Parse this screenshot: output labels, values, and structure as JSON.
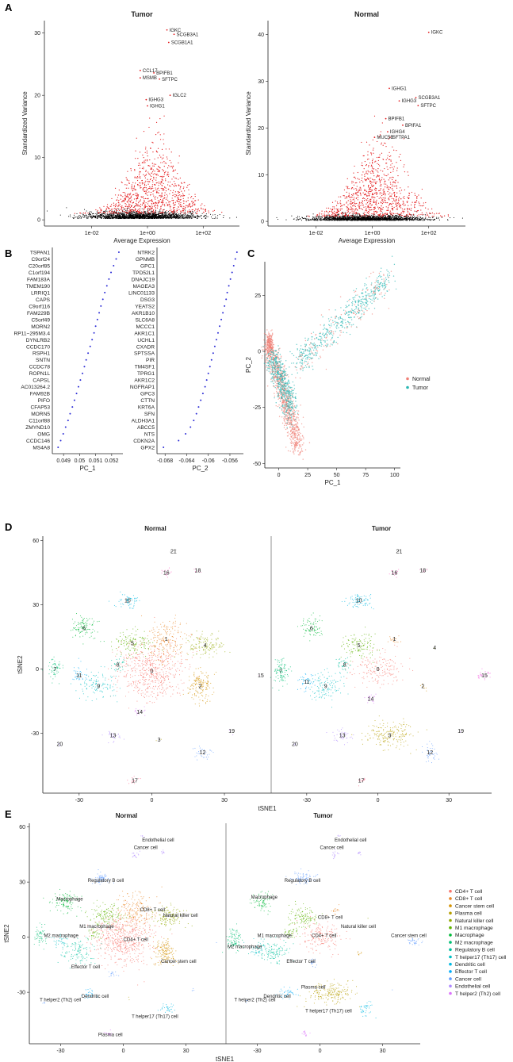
{
  "colors": {
    "highlight": "#e41a1c",
    "bg": "#d9d9d9",
    "normal": "#f08178",
    "tumor": "#2ab7b3",
    "axis": "#222222",
    "pc": "#2b2bd6",
    "clusters": [
      "#f8766d",
      "#e88526",
      "#d39200",
      "#b79f00",
      "#93aa00",
      "#5eb300",
      "#00ba38",
      "#00bf74",
      "#00c19f",
      "#00bfc4",
      "#00b9e3",
      "#00adfa",
      "#619cff",
      "#ae87ff",
      "#db72fb",
      "#f564e3",
      "#ff61c3",
      "#ff6c91",
      "#e06fb0",
      "#c77cff",
      "#a58aff",
      "#8f8f8f"
    ]
  },
  "panels": {
    "A": "A",
    "B": "B",
    "C": "C",
    "D": "D",
    "E": "E"
  },
  "chart_data": [
    {
      "id": "A1",
      "type": "scatter",
      "title": "Tumor",
      "xlabel": "Average Expression",
      "ylabel": "Standardized Variance",
      "xscale": "log10",
      "xticks": [
        "1e-02",
        "1e+00",
        "1e+02"
      ],
      "xlim": [
        0.0002,
        2000
      ],
      "ylim": [
        -1,
        32
      ],
      "yticks": [
        0,
        10,
        20,
        30
      ],
      "labels": [
        {
          "text": "IGKC",
          "x": 5,
          "y": 30.5
        },
        {
          "text": "SCGB3A1",
          "x": 9,
          "y": 29.8
        },
        {
          "text": "SCGB1A1",
          "x": 5.8,
          "y": 28.5
        },
        {
          "text": "CCL17",
          "x": 0.55,
          "y": 24
        },
        {
          "text": "BPIFB1",
          "x": 1.7,
          "y": 23.6
        },
        {
          "text": "MSMB",
          "x": 0.55,
          "y": 22.8
        },
        {
          "text": "SFTPC",
          "x": 2.7,
          "y": 22.6
        },
        {
          "text": "IGLC2",
          "x": 6.5,
          "y": 20
        },
        {
          "text": "IGHG3",
          "x": 0.9,
          "y": 19.3
        },
        {
          "text": "IGHG1",
          "x": 1,
          "y": 18.3
        }
      ]
    },
    {
      "id": "A2",
      "type": "scatter",
      "title": "Normal",
      "xlabel": "Average Expression",
      "ylabel": "Standardized Variance",
      "xscale": "log10",
      "xticks": [
        "1e-02",
        "1e+00",
        "1e+02"
      ],
      "xlim": [
        0.0002,
        2000
      ],
      "ylim": [
        -1,
        43
      ],
      "yticks": [
        0,
        10,
        20,
        30,
        40
      ],
      "labels": [
        {
          "text": "IGKC",
          "x": 100,
          "y": 40.5
        },
        {
          "text": "IGHG1",
          "x": 4,
          "y": 28.5
        },
        {
          "text": "SCGB3A1",
          "x": 35,
          "y": 26.5
        },
        {
          "text": "IGHG3",
          "x": 9,
          "y": 25.8
        },
        {
          "text": "SFTPC",
          "x": 42,
          "y": 24.8
        },
        {
          "text": "BPIFB1",
          "x": 3,
          "y": 22
        },
        {
          "text": "BPIFA1",
          "x": 12,
          "y": 20.6
        },
        {
          "text": "IGHG4",
          "x": 3.5,
          "y": 19.2
        },
        {
          "text": "MUC5B",
          "x": 1.2,
          "y": 18
        },
        {
          "text": "SFTPA1",
          "x": 4.2,
          "y": 18
        }
      ]
    },
    {
      "id": "B1",
      "type": "scatter",
      "xlabel": "PC_1",
      "xlim": [
        0.0483,
        0.0527
      ],
      "xticks": [
        0.049,
        0.05,
        0.051,
        0.052
      ],
      "genes": [
        "TSPAN1",
        "C9orf24",
        "C20orf85",
        "C1orf194",
        "FAM183A",
        "TMEM190",
        "LRRIQ1",
        "CAPS",
        "C9orf116",
        "FAM229B",
        "C5orf49",
        "MORN2",
        "RP11−295M3.4",
        "DYNLRB2",
        "CCDC170",
        "RSPH1",
        "SNTN",
        "CCDC78",
        "ROPN1L",
        "CAPSL",
        "AC013264.2",
        "FAM92B",
        "PIFO",
        "CFAP53",
        "MORN5",
        "C11orf88",
        "ZMYND10",
        "OMG",
        "CCDC146",
        "MS4A8"
      ],
      "values": [
        0.05245,
        0.05228,
        0.05212,
        0.05196,
        0.05183,
        0.0517,
        0.05157,
        0.05145,
        0.05133,
        0.05122,
        0.05111,
        0.051,
        0.0509,
        0.05078,
        0.05066,
        0.05053,
        0.05041,
        0.0503,
        0.05018,
        0.05005,
        0.04993,
        0.04981,
        0.04968,
        0.04955,
        0.04941,
        0.04928,
        0.04913,
        0.04898,
        0.04882,
        0.04866
      ]
    },
    {
      "id": "B2",
      "type": "scatter",
      "xlabel": "PC_2",
      "xlim": [
        -0.0695,
        -0.0535
      ],
      "xticks": [
        -0.068,
        -0.064,
        -0.06,
        -0.056
      ],
      "genes": [
        "NTRK2",
        "GPNMB",
        "GPC1",
        "TPD52L1",
        "DNAJC19",
        "MAGEA3",
        "LINC01133",
        "DSG3",
        "YEATS2",
        "AKR1B10",
        "SLC6A8",
        "MCCC1",
        "AKR1C1",
        "UCHL1",
        "CXADR",
        "SPTSSA",
        "PIR",
        "TM4SF1",
        "TPRG1",
        "AKR1C2",
        "NGFRAP1",
        "GPC3",
        "CTTN",
        "KRT6A",
        "SFN",
        "ALDH3A1",
        "ABCC5",
        "NTS",
        "CDKN2A",
        "GPX2"
      ],
      "values": [
        -0.0547,
        -0.055,
        -0.0553,
        -0.0556,
        -0.0559,
        -0.0562,
        -0.0565,
        -0.0567,
        -0.057,
        -0.0573,
        -0.0576,
        -0.0579,
        -0.0582,
        -0.0585,
        -0.0588,
        -0.0591,
        -0.0594,
        -0.0597,
        -0.06,
        -0.0603,
        -0.0606,
        -0.061,
        -0.0614,
        -0.0618,
        -0.0622,
        -0.0627,
        -0.0633,
        -0.0642,
        -0.0655,
        -0.0683
      ]
    },
    {
      "id": "C",
      "type": "scatter",
      "xlabel": "PC_1",
      "ylabel": "PC_2",
      "xlim": [
        -12,
        105
      ],
      "ylim": [
        -52,
        40
      ],
      "xticks": [
        0,
        25,
        50,
        75,
        100
      ],
      "yticks": [
        -50,
        -25,
        0,
        25
      ],
      "legend": {
        "placement": "right",
        "entries": [
          "Normal",
          "Tumor"
        ]
      }
    },
    {
      "id": "D",
      "type": "scatter",
      "xlabel": "tSNE1",
      "ylabel": "tSNE2",
      "xlim": [
        -45,
        48
      ],
      "ylim": [
        -58,
        62
      ],
      "xticks": [
        -30,
        0,
        30
      ],
      "yticks": [
        -30,
        0,
        30,
        60
      ],
      "facets": [
        "Normal",
        "Tumor"
      ],
      "clusters": [
        {
          "id": "0",
          "n": [
            [
              0,
              -1,
              13,
              12,
              1500
            ]
          ],
          "t": [
            [
              0,
              0,
              10,
              7,
              450
            ]
          ]
        },
        {
          "id": "1",
          "n": [
            [
              6,
              14,
              8,
              9,
              500
            ]
          ],
          "t": [
            [
              7,
              14,
              2.5,
              2.5,
              45
            ]
          ]
        },
        {
          "id": "2",
          "n": [
            [
              20,
              -8,
              5,
              7,
              400
            ]
          ],
          "t": [
            [
              19,
              -8,
              1.5,
              2.5,
              20
            ]
          ]
        },
        {
          "id": "3",
          "n": [
            [
              3,
              -33,
              2,
              2,
              5
            ]
          ],
          "t": [
            [
              5,
              -31,
              9,
              6,
              500
            ]
          ]
        },
        {
          "id": "4",
          "n": [
            [
              22,
              11,
              7,
              5,
              350
            ]
          ],
          "t": [
            [
              24,
              10,
              1,
              1,
              3
            ]
          ]
        },
        {
          "id": "5",
          "n": [
            [
              -8,
              12,
              7,
              5,
              350
            ]
          ],
          "t": [
            [
              -8,
              11,
              6,
              5,
              320
            ]
          ]
        },
        {
          "id": "6",
          "n": [
            [
              -28,
              19,
              6,
              5,
              280
            ]
          ],
          "t": [
            [
              -28,
              19,
              5,
              5,
              200
            ]
          ]
        },
        {
          "id": "7",
          "n": [
            [
              -40,
              0,
              3,
              5,
              150
            ]
          ],
          "t": [
            [
              -41,
              -1,
              3,
              6,
              250
            ]
          ]
        },
        {
          "id": "8",
          "n": [
            [
              -14,
              2,
              3,
              3,
              80
            ]
          ],
          "t": [
            [
              -14,
              2,
              3,
              3,
              100
            ]
          ]
        },
        {
          "id": "9",
          "n": [
            [
              -22,
              -8,
              7,
              6,
              300
            ]
          ],
          "t": [
            [
              -22,
              -8,
              7,
              6,
              320
            ]
          ]
        },
        {
          "id": "10",
          "n": [
            [
              -10,
              32,
              4,
              3,
              150
            ]
          ],
          "t": [
            [
              -8,
              32,
              5,
              3,
              200
            ]
          ]
        },
        {
          "id": "11",
          "n": [
            [
              -30,
              -3,
              3,
              4,
              90
            ]
          ],
          "t": [
            [
              -30,
              -6,
              3,
              4,
              110
            ]
          ]
        },
        {
          "id": "12",
          "n": [
            [
              21,
              -39,
              3,
              3,
              80
            ]
          ],
          "t": [
            [
              22,
              -39,
              3,
              4,
              100
            ]
          ]
        },
        {
          "id": "13",
          "n": [
            [
              -16,
              -31,
              3,
              3,
              70
            ]
          ],
          "t": [
            [
              -15,
              -31,
              4,
              3,
              100
            ]
          ]
        },
        {
          "id": "14",
          "n": [
            [
              -5,
              -20,
              2,
              2,
              40
            ]
          ],
          "t": [
            [
              -3,
              -14,
              2,
              2,
              50
            ]
          ]
        },
        {
          "id": "15",
          "n": [
            [
              45,
              -3,
              1,
              1,
              3
            ]
          ],
          "t": [
            [
              45,
              -3,
              3,
              2,
              80
            ]
          ]
        },
        {
          "id": "16",
          "n": [
            [
              6,
              45,
              2,
              2,
              40
            ]
          ],
          "t": [
            [
              7,
              45,
              2,
              2,
              40
            ]
          ]
        },
        {
          "id": "17",
          "n": [
            [
              -7,
              -52,
              2,
              1.5,
              40
            ]
          ],
          "t": [
            [
              -7,
              -52,
              2,
              1.5,
              40
            ]
          ]
        },
        {
          "id": "18",
          "n": [
            [
              19,
              46,
              1.5,
              1,
              20
            ]
          ],
          "t": [
            [
              19,
              46,
              1.5,
              1,
              20
            ]
          ]
        },
        {
          "id": "19",
          "n": [
            [
              33,
              -29,
              1,
              1,
              10
            ]
          ],
          "t": [
            [
              35,
              -29,
              0.5,
              0.5,
              3
            ]
          ]
        },
        {
          "id": "20",
          "n": [
            [
              -38,
              -35,
              1,
              1,
              10
            ]
          ],
          "t": [
            [
              -35,
              -35,
              1,
              1,
              10
            ]
          ]
        },
        {
          "id": "21",
          "n": [
            [
              9,
              55,
              1,
              1,
              10
            ]
          ],
          "t": [
            [
              9,
              55,
              1,
              1,
              10
            ]
          ]
        }
      ]
    },
    {
      "id": "E",
      "type": "scatter",
      "xlabel": "tSNE1",
      "ylabel": "tSNE2",
      "xlim": [
        -45,
        48
      ],
      "ylim": [
        -58,
        62
      ],
      "xticks": [
        -30,
        0,
        30
      ],
      "yticks": [
        -30,
        0,
        30,
        60
      ],
      "facets": [
        "Normal",
        "Tumor"
      ],
      "legend": {
        "placement": "right",
        "entries": [
          "CD4+ T cell",
          "CD8+ T cell",
          "Cancer stem cell",
          "Plasma cell",
          "Natural killer cell",
          "M1 macrophage",
          "Macrophage",
          "M2 macrophage",
          "Regulatory B cell",
          "T helper17 (Th17) cell",
          "Dendritic cell",
          "Effector T cell",
          "Cancer cell",
          "Endothelial cell",
          "T helper2 (Th2) cell"
        ]
      },
      "cluster_types": [
        0,
        1,
        2,
        3,
        4,
        5,
        6,
        7,
        5,
        8,
        12,
        9,
        10,
        11,
        12,
        12,
        13,
        14,
        13,
        12,
        12,
        13
      ],
      "normal_labels": [
        {
          "text": "Endothelial cell",
          "x": 9,
          "y": 52
        },
        {
          "text": "Cancer cell",
          "x": 5,
          "y": 48
        },
        {
          "text": "Regulatory B cell",
          "x": -17,
          "y": 30
        },
        {
          "text": "Macrophage",
          "x": -32,
          "y": 20
        },
        {
          "text": "CD8+ T cell",
          "x": 8,
          "y": 14
        },
        {
          "text": "Natural killer cell",
          "x": 19,
          "y": 11
        },
        {
          "text": "M1 macrophage",
          "x": -21,
          "y": 5
        },
        {
          "text": "M2 macrophage",
          "x": -38,
          "y": 0
        },
        {
          "text": "CD4+ T cell",
          "x": 0,
          "y": -2
        },
        {
          "text": "Effector T cell",
          "x": -25,
          "y": -17
        },
        {
          "text": "Cancer stem cell",
          "x": 18,
          "y": -14
        },
        {
          "text": "T helper2 (Th2) cell",
          "x": -40,
          "y": -35
        },
        {
          "text": "Dendritic cell",
          "x": -20,
          "y": -33
        },
        {
          "text": "T helper17 (Th17) cell",
          "x": 4,
          "y": -44
        },
        {
          "text": "Plasma cell",
          "x": -12,
          "y": -54
        }
      ],
      "tumor_labels": [
        {
          "text": "Endothelial cell",
          "x": 7,
          "y": 52
        },
        {
          "text": "Cancer cell",
          "x": 0,
          "y": 48
        },
        {
          "text": "Regulatory B cell",
          "x": -17,
          "y": 30
        },
        {
          "text": "Macrophage",
          "x": -33,
          "y": 21
        },
        {
          "text": "CD8+ T cell",
          "x": -1,
          "y": 10
        },
        {
          "text": "Natural killer cell",
          "x": 10,
          "y": 5
        },
        {
          "text": "Cancer stem cell",
          "x": 34,
          "y": 0
        },
        {
          "text": "M1 macrophage",
          "x": -30,
          "y": 0
        },
        {
          "text": "CD4+ T cell",
          "x": -4,
          "y": 0
        },
        {
          "text": "M2 macrophage",
          "x": -50,
          "y": -6
        },
        {
          "text": "Effector T cell",
          "x": -16,
          "y": -14
        },
        {
          "text": "Plasma cell",
          "x": -9,
          "y": -28
        },
        {
          "text": "Dendritic cell",
          "x": -27,
          "y": -33
        },
        {
          "text": "T helper2 (Th2) cell",
          "x": -41,
          "y": -35
        },
        {
          "text": "T helper17 (Th17) cell",
          "x": -7,
          "y": -41
        }
      ]
    }
  ]
}
